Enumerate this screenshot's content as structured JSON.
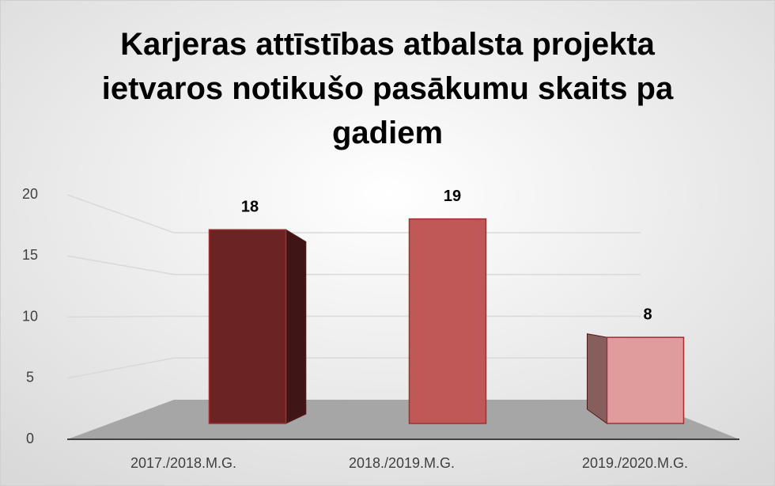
{
  "chart_data": {
    "type": "bar3d",
    "title": "Karjeras attīstības atbalsta projekta ietvaros notikušo pasākumu skaits pa gadiem",
    "categories": [
      "2017./2018.M.G.",
      "2018./2019.M.G.",
      "2019./2020.M.G."
    ],
    "values": [
      18,
      19,
      8
    ],
    "colors": [
      "#6b2323",
      "#c05858",
      "#e09c9c"
    ],
    "ylim": [
      0,
      20
    ],
    "yticks": [
      0,
      5,
      10,
      15,
      20
    ],
    "grid": true
  }
}
